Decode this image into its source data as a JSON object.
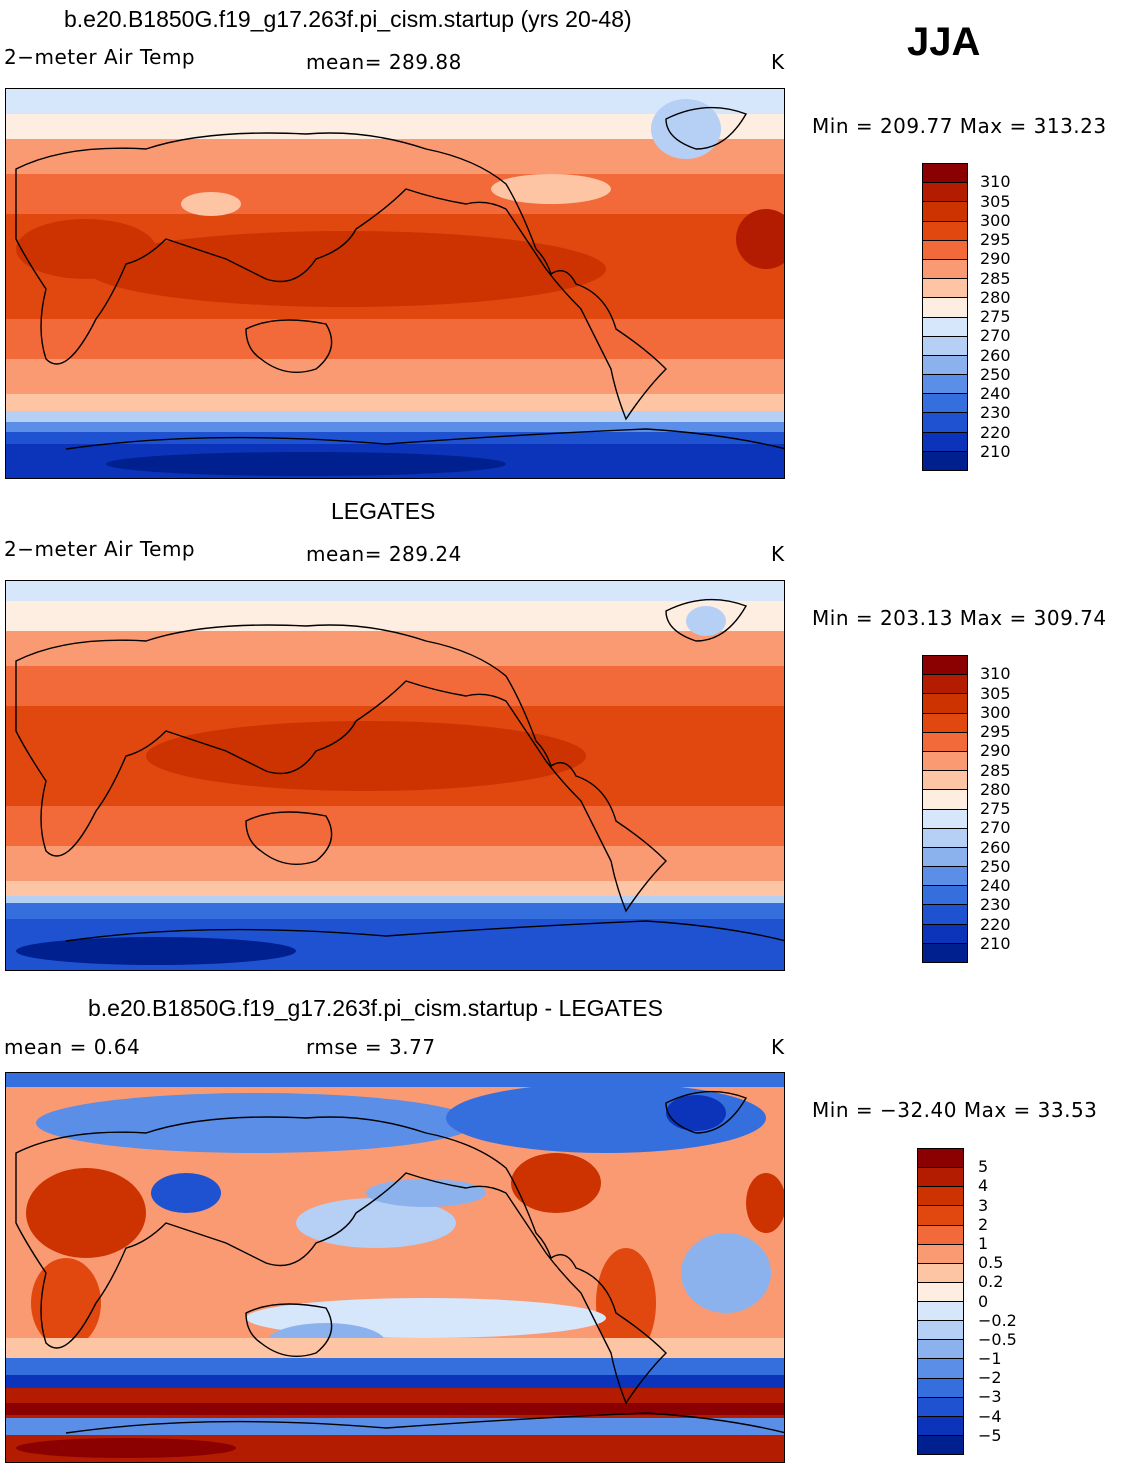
{
  "season": "JJA",
  "panels": [
    {
      "title": "b.e20.B1850G.f19_g17.263f.pi_cism.startup (yrs 20-48)",
      "left_label": "2−meter Air Temp",
      "center_label": "mean=  289.88",
      "units": "K",
      "minmax": "Min = 209.77 Max = 313.23",
      "colorbar": {
        "colors": [
          "#8b0000",
          "#b31c00",
          "#cc3300",
          "#e0480f",
          "#f26a3a",
          "#fa9a73",
          "#fdc5a4",
          "#feeee2",
          "#d6e6fb",
          "#b5cff5",
          "#8cb2ee",
          "#5b8ee6",
          "#356fde",
          "#1f52d1",
          "#0b34ba",
          "#00208f"
        ],
        "ticks": [
          "310",
          "305",
          "300",
          "295",
          "290",
          "285",
          "280",
          "275",
          "270",
          "260",
          "250",
          "240",
          "230",
          "220",
          "210"
        ]
      }
    },
    {
      "title": "LEGATES",
      "left_label": "2−meter Air Temp",
      "center_label": "mean=  289.24",
      "units": "K",
      "minmax": "Min = 203.13 Max = 309.74",
      "colorbar": {
        "colors": [
          "#8b0000",
          "#b31c00",
          "#cc3300",
          "#e0480f",
          "#f26a3a",
          "#fa9a73",
          "#fdc5a4",
          "#feeee2",
          "#d6e6fb",
          "#b5cff5",
          "#8cb2ee",
          "#5b8ee6",
          "#356fde",
          "#1f52d1",
          "#0b34ba",
          "#00208f"
        ],
        "ticks": [
          "310",
          "305",
          "300",
          "295",
          "290",
          "285",
          "280",
          "275",
          "270",
          "260",
          "250",
          "240",
          "230",
          "220",
          "210"
        ]
      }
    },
    {
      "title": "b.e20.B1850G.f19_g17.263f.pi_cism.startup - LEGATES",
      "left_label": "mean =     0.64",
      "center_label": "rmse =     3.77",
      "units": "K",
      "minmax": "Min = −32.40 Max =   33.53",
      "colorbar": {
        "colors": [
          "#8b0000",
          "#b31c00",
          "#cc3300",
          "#e0480f",
          "#f26a3a",
          "#fa9a73",
          "#fdc5a4",
          "#feeee2",
          "#d6e6fb",
          "#b5cff5",
          "#8cb2ee",
          "#5b8ee6",
          "#356fde",
          "#1f52d1",
          "#0b34ba",
          "#00208f"
        ],
        "ticks": [
          "5",
          "4",
          "3",
          "2",
          "1",
          "0.5",
          "0.2",
          "0",
          "−0.2",
          "−0.5",
          "−1",
          "−2",
          "−3",
          "−4",
          "−5"
        ]
      }
    }
  ]
}
